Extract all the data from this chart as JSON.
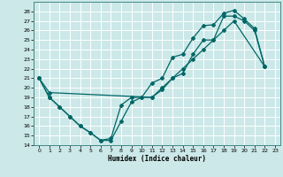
{
  "xlabel": "Humidex (Indice chaleur)",
  "background_color": "#cce8e8",
  "grid_color": "#ffffff",
  "line_color": "#006666",
  "xlim": [
    -0.5,
    23.5
  ],
  "ylim": [
    14,
    29
  ],
  "xticks": [
    0,
    1,
    2,
    3,
    4,
    5,
    6,
    7,
    8,
    9,
    10,
    11,
    12,
    13,
    14,
    15,
    16,
    17,
    18,
    19,
    20,
    21,
    22,
    23
  ],
  "yticks": [
    14,
    15,
    16,
    17,
    18,
    19,
    20,
    21,
    22,
    23,
    24,
    25,
    26,
    27,
    28
  ],
  "line1_x": [
    0,
    1,
    2,
    3,
    4,
    5,
    6,
    7,
    8,
    9,
    10,
    11,
    12,
    13,
    14,
    15,
    16,
    17,
    18,
    19,
    20,
    21,
    22
  ],
  "line1_y": [
    21,
    19,
    18,
    17,
    16,
    15.3,
    14.5,
    14.5,
    16.5,
    18.5,
    19,
    20.5,
    21,
    23.2,
    23.5,
    25.2,
    26.5,
    26.6,
    27.8,
    28.1,
    27.2,
    26.2,
    22.2
  ],
  "line2_x": [
    0,
    1,
    2,
    3,
    4,
    5,
    6,
    7,
    8,
    9,
    10,
    11,
    12,
    13,
    14,
    15,
    16,
    17,
    18,
    19,
    20,
    21,
    22
  ],
  "line2_y": [
    21,
    19,
    18,
    17,
    16,
    15.3,
    14.5,
    14.7,
    18.2,
    19,
    19,
    19,
    19.8,
    21,
    21.5,
    23.5,
    25,
    25,
    27.5,
    27.5,
    27,
    26,
    22.2
  ],
  "line3_x": [
    0,
    1,
    11,
    12,
    13,
    14,
    15,
    16,
    17,
    18,
    19,
    22
  ],
  "line3_y": [
    21,
    19.5,
    19,
    20,
    21,
    22,
    23,
    24,
    25,
    26,
    27,
    22.2
  ]
}
